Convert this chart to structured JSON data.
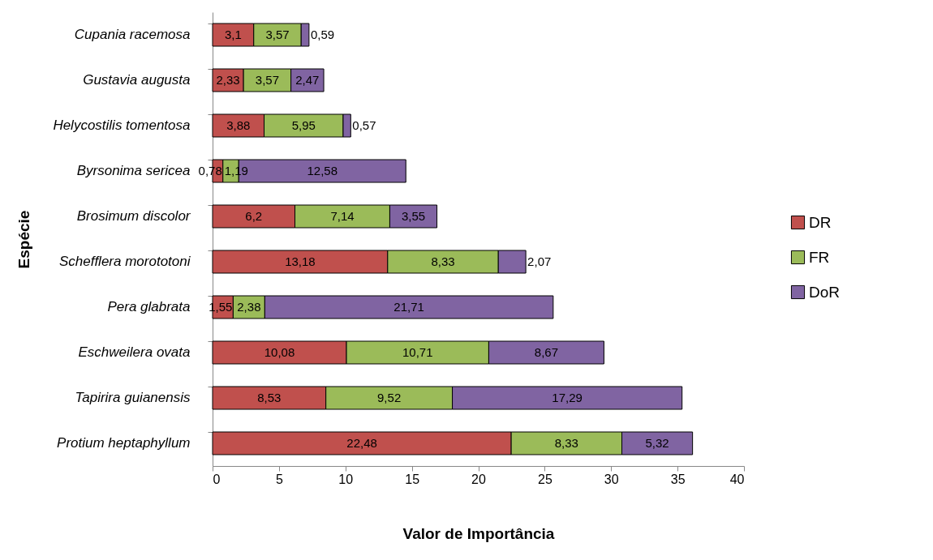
{
  "chart_data": {
    "type": "bar",
    "orientation": "horizontal",
    "stacked": true,
    "xlabel": "Valor de Importância",
    "ylabel": "Espécie",
    "categories": [
      "Cupania racemosa",
      "Gustavia augusta",
      "Helycostilis tomentosa",
      "Byrsonima sericea",
      "Brosimum discolor",
      "Schefflera morototoni",
      "Pera glabrata",
      "Eschweilera ovata",
      "Tapirira guianensis",
      "Protium heptaphyllum"
    ],
    "series": [
      {
        "name": "DR",
        "color": "#c0504d",
        "values": [
          3.1,
          2.33,
          3.88,
          0.78,
          6.2,
          13.18,
          1.55,
          10.08,
          8.53,
          22.48
        ],
        "value_labels": [
          "3,1",
          "2,33",
          "3,88",
          "0,78",
          "6,2",
          "13,18",
          "1,55",
          "10,08",
          "8,53",
          "22,48"
        ]
      },
      {
        "name": "FR",
        "color": "#9bbb59",
        "values": [
          3.57,
          3.57,
          5.95,
          1.19,
          7.14,
          8.33,
          2.38,
          10.71,
          9.52,
          8.33
        ],
        "value_labels": [
          "3,57",
          "3,57",
          "5,95",
          "1,19",
          "7,14",
          "8,33",
          "2,38",
          "10,71",
          "9,52",
          "8,33"
        ]
      },
      {
        "name": "DoR",
        "color": "#8064a2",
        "values": [
          0.59,
          2.47,
          0.57,
          12.58,
          3.55,
          2.07,
          21.71,
          8.67,
          17.29,
          5.32
        ],
        "value_labels": [
          "0,59",
          "2,47",
          "0,57",
          "12,58",
          "3,55",
          "2,07",
          "21,71",
          "8,67",
          "17,29",
          "5,32"
        ]
      }
    ],
    "xlim": [
      0,
      40
    ],
    "xticks": [
      0,
      5,
      10,
      15,
      20,
      25,
      30,
      35,
      40
    ],
    "legend": "right"
  }
}
